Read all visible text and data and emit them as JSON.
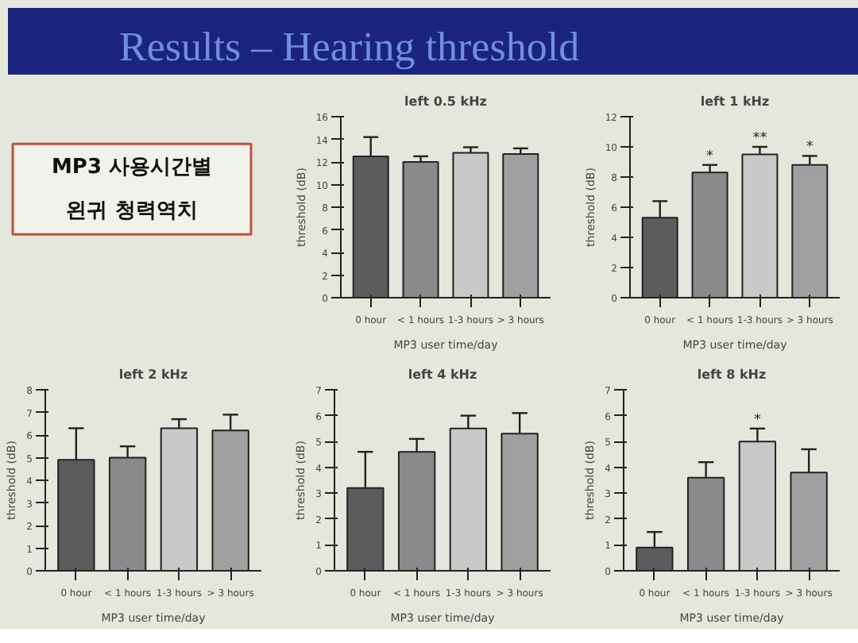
{
  "chart_data": [
    {
      "type": "other",
      "title": "Results – Hearing threshold",
      "annotations": [
        "MP3 사용시간별",
        "왼귀 청력역치"
      ]
    },
    {
      "type": "bar",
      "title": "left 0.5 kHz",
      "xlabel": "MP3 user time/day",
      "ylabel": "threshold (dB)",
      "categories": [
        "0 hour",
        "< 1 hours",
        "1-3 hours",
        "> 3 hours"
      ],
      "values": [
        12.5,
        12.0,
        12.8,
        12.7
      ],
      "errors": [
        1.7,
        0.5,
        0.5,
        0.5
      ],
      "colors": [
        "#5c5c5c",
        "#8a8a8a",
        "#c8c8c8",
        "#a0a0a0"
      ],
      "ylim": [
        0,
        16
      ],
      "yticks": [
        0,
        2,
        4,
        6,
        8,
        10,
        12,
        14,
        16
      ],
      "grid": false
    },
    {
      "type": "bar",
      "title": "left 1 kHz",
      "xlabel": "MP3 user time/day",
      "ylabel": "threshold (dB)",
      "categories": [
        "0 hour",
        "< 1 hours",
        "1-3 hours",
        "> 3 hours"
      ],
      "values": [
        5.3,
        8.3,
        9.5,
        8.8
      ],
      "errors": [
        1.1,
        0.5,
        0.5,
        0.6
      ],
      "colors": [
        "#5c5c5c",
        "#8a8a8a",
        "#c8c8c8",
        "#a0a0a0"
      ],
      "ylim": [
        0,
        12
      ],
      "yticks": [
        0,
        2,
        4,
        6,
        8,
        10,
        12
      ],
      "grid": false,
      "annotations": [
        {
          "text": "*",
          "x": "< 1 hours",
          "y": 8.8
        },
        {
          "text": "**",
          "x": "1-3 hours",
          "y": 10.0
        },
        {
          "text": "*",
          "x": "> 3 hours",
          "y": 9.4
        }
      ]
    },
    {
      "type": "bar",
      "title": "left 2 kHz",
      "xlabel": "MP3 user time/day",
      "ylabel": "threshold (dB)",
      "categories": [
        "0 hour",
        "< 1 hours",
        "1-3 hours",
        "> 3 hours"
      ],
      "values": [
        4.9,
        5.0,
        6.3,
        6.2
      ],
      "errors": [
        1.4,
        0.5,
        0.4,
        0.7
      ],
      "colors": [
        "#5c5c5c",
        "#8a8a8a",
        "#c8c8c8",
        "#a0a0a0"
      ],
      "ylim": [
        0,
        8
      ],
      "yticks": [
        0,
        1,
        2,
        3,
        4,
        5,
        6,
        7,
        8
      ],
      "grid": false
    },
    {
      "type": "bar",
      "title": "left 4 kHz",
      "xlabel": "MP3 user time/day",
      "ylabel": "threshold (dB)",
      "categories": [
        "0 hour",
        "< 1 hours",
        "1-3 hours",
        "> 3 hours"
      ],
      "values": [
        3.2,
        4.6,
        5.5,
        5.3
      ],
      "errors": [
        1.4,
        0.5,
        0.5,
        0.8
      ],
      "colors": [
        "#5c5c5c",
        "#8a8a8a",
        "#c8c8c8",
        "#a0a0a0"
      ],
      "ylim": [
        0,
        7
      ],
      "yticks": [
        0,
        1,
        2,
        3,
        4,
        5,
        6,
        7
      ],
      "grid": false
    },
    {
      "type": "bar",
      "title": "left 8 kHz",
      "xlabel": "MP3 user time/day",
      "ylabel": "threshold (dB)",
      "categories": [
        "0 hour",
        "< 1 hours",
        "1-3 hours",
        "> 3 hours"
      ],
      "values": [
        0.9,
        3.6,
        5.0,
        3.8
      ],
      "errors": [
        0.6,
        0.6,
        0.5,
        0.9
      ],
      "colors": [
        "#5c5c5c",
        "#8a8a8a",
        "#c8c8c8",
        "#a0a0a0"
      ],
      "ylim": [
        0,
        7
      ],
      "yticks": [
        0,
        1,
        2,
        3,
        4,
        5,
        6,
        7
      ],
      "grid": false,
      "annotations": [
        {
          "text": "*",
          "x": "1-3 hours",
          "y": 5.5
        }
      ]
    }
  ]
}
